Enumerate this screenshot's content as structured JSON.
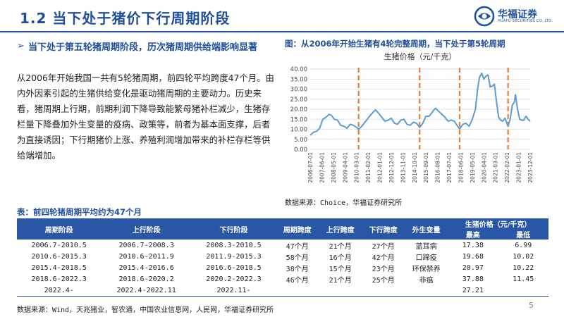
{
  "header": {
    "title": "1.2 当下处于猪价下行周期阶段",
    "logo_cn": "华福证券",
    "logo_en": "HUAFU SECURITIES CO.,LTD."
  },
  "left": {
    "bullet_mark": "➢",
    "bullet": "当下处于第五轮猪周期阶段，历次猪周期供给端影响显著",
    "body": "从2006年开始我国一共有5轮猪周期，前四轮平均跨度47个月。由内外因素引起的生猪供给变化是驱动猪周期的主要动力。历史来看，猪周期上行期，前期利润下降导致能繁母猪补栏减少，生猪存栏量下降叠加外生变量的疫病、政策等，前者为基本面支撑，后者为直接诱因；下行期猪价上涨、养殖利润增加带来的补栏存栏等供给端增加。"
  },
  "chart_caption": "图：从2006年开始生猪有4轮完整周期，当下处于第5轮周期",
  "chart_source": "数据来源：Choice，华福证券研究所",
  "chart_data": {
    "type": "line",
    "title": "生猪价格（元/千克）",
    "ylim": [
      0,
      40
    ],
    "yticks": [
      "0.00",
      "5.00",
      "10.00",
      "15.00",
      "20.00",
      "25.00",
      "30.00",
      "35.00",
      "40.00"
    ],
    "x_start": "2006-07",
    "x_end": "2023-12",
    "xticks": [
      "2006-07-01",
      "2007-06-01",
      "2008-05-01",
      "2009-04-01",
      "2010-03-01",
      "2011-02-01",
      "2012-01-01",
      "2012-12-01",
      "2013-11-01",
      "2014-10-01",
      "2015-09-01",
      "2016-08-01",
      "2017-07-01",
      "2018-06-01",
      "2019-05-01",
      "2020-04-01",
      "2021-03-01",
      "2022-02-01",
      "2023-01-01",
      "2023-12-01"
    ],
    "cycle_markers": [
      "2010-05",
      "2015-03",
      "2018-05",
      "2022-03"
    ],
    "line_color": "#5b9bd5",
    "marker_color": "#ed7d31",
    "grid": "horizontal",
    "series": [
      {
        "x": [
          "2006-07",
          "2006-10",
          "2007-01",
          "2007-04",
          "2007-07",
          "2007-10",
          "2008-01",
          "2008-03",
          "2008-06",
          "2008-09",
          "2008-12",
          "2009-03",
          "2009-06",
          "2009-09",
          "2009-12",
          "2010-03",
          "2010-05",
          "2010-08",
          "2010-11",
          "2011-02",
          "2011-05",
          "2011-09",
          "2011-12",
          "2012-03",
          "2012-06",
          "2012-09",
          "2012-12",
          "2013-03",
          "2013-06",
          "2013-09",
          "2013-12",
          "2014-03",
          "2014-06",
          "2014-09",
          "2014-12",
          "2015-03",
          "2015-06",
          "2015-09",
          "2015-12",
          "2016-03",
          "2016-06",
          "2016-09",
          "2016-12",
          "2017-03",
          "2017-06",
          "2017-09",
          "2017-12",
          "2018-03",
          "2018-05",
          "2018-08",
          "2018-11",
          "2019-02",
          "2019-05",
          "2019-08",
          "2019-10",
          "2019-12",
          "2020-02",
          "2020-04",
          "2020-06",
          "2020-08",
          "2020-10",
          "2020-12",
          "2021-02",
          "2021-04",
          "2021-06",
          "2021-08",
          "2021-10",
          "2021-12",
          "2022-03",
          "2022-05",
          "2022-07",
          "2022-09",
          "2022-10",
          "2022-12",
          "2023-02",
          "2023-04",
          "2023-06",
          "2023-08",
          "2023-10",
          "2023-12"
        ],
        "y": [
          7.0,
          8.5,
          9.0,
          10.5,
          15.0,
          16.0,
          17.4,
          17.0,
          15.0,
          14.5,
          12.0,
          11.5,
          10.5,
          12.5,
          12.0,
          11.0,
          10.0,
          11.5,
          13.5,
          15.5,
          17.5,
          19.7,
          18.0,
          16.0,
          14.0,
          14.5,
          15.5,
          13.0,
          12.5,
          14.5,
          15.0,
          12.5,
          12.0,
          13.5,
          13.0,
          10.9,
          13.0,
          16.5,
          16.5,
          18.5,
          20.5,
          19.0,
          17.5,
          16.0,
          14.0,
          14.5,
          14.0,
          11.5,
          10.2,
          12.5,
          13.0,
          11.5,
          15.0,
          20.0,
          30.0,
          36.0,
          37.9,
          35.0,
          36.5,
          37.0,
          31.0,
          31.5,
          32.5,
          24.0,
          16.0,
          14.5,
          14.0,
          15.5,
          11.5,
          15.0,
          22.0,
          23.5,
          27.2,
          20.0,
          15.0,
          14.5,
          14.5,
          16.5,
          15.0,
          14.0
        ]
      }
    ]
  },
  "table": {
    "title": "表：前四轮猪周期平均约为47个月",
    "headers": [
      "周期阶段",
      "上行阶段",
      "下行阶段",
      "周期跨度",
      "上行跨度",
      "下行跨度",
      "外生变量",
      "生猪价格（元/千克）"
    ],
    "price_sub": [
      "最高",
      "最低"
    ],
    "rows": [
      [
        "2006.7-2010.5",
        "2006.7-2008.3",
        "2008.3-2010.5",
        "47个月",
        "21个月",
        "27个月",
        "蓝耳病",
        "17.38",
        "6.99"
      ],
      [
        "2010.6-2015.3",
        "2010.6-2011.9",
        "2011.9-2015.3",
        "58个月",
        "16个月",
        "42个月",
        "口蹄疫",
        "19.68",
        "10.02"
      ],
      [
        "2015.4-2018.5",
        "2015.4-2016.6",
        "2016.6-2018.5",
        "38个月",
        "15个月",
        "23个月",
        "环保禁养",
        "20.97",
        "10.22"
      ],
      [
        "2018.6-2022.3",
        "2018.6-2020.2",
        "2020.2-2022.3",
        "46个月",
        "21个月",
        "25个月",
        "非瘟",
        "37.88",
        "11.45"
      ],
      [
        "2022.4-",
        "2022.4-2022.11",
        "2022.11-",
        "",
        "",
        "",
        "",
        "27.21",
        ""
      ]
    ]
  },
  "footer": {
    "source": "数据来源：Wind，天兆猪业，智农通，中国农业信息网，人民网，华福证券研究所",
    "page": "5"
  }
}
